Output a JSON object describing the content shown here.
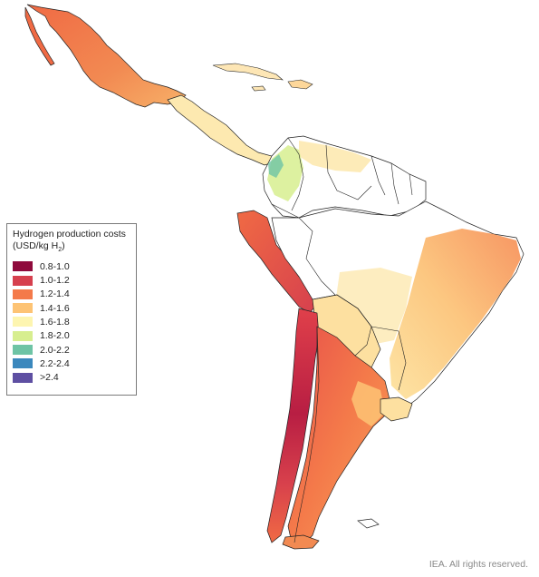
{
  "legend": {
    "title": "Hydrogen production costs",
    "unit_prefix": "(USD/kg H",
    "unit_sub": "2",
    "unit_suffix": ")",
    "items": [
      {
        "label": "0.8-1.0",
        "color": "#8f0a3c"
      },
      {
        "label": "1.0-1.2",
        "color": "#d6404e"
      },
      {
        "label": "1.2-1.4",
        "color": "#f47a4a"
      },
      {
        "label": "1.4-1.6",
        "color": "#fdc374"
      },
      {
        "label": "1.6-1.8",
        "color": "#fdf5b0"
      },
      {
        "label": "1.8-2.0",
        "color": "#d7ee8f"
      },
      {
        "label": "2.0-2.2",
        "color": "#6ec4a5"
      },
      {
        "label": "2.2-2.4",
        "color": "#3b88bd"
      },
      {
        "label": ">2.4",
        "color": "#5e4fa2"
      }
    ]
  },
  "credit": "IEA. All rights reserved."
}
